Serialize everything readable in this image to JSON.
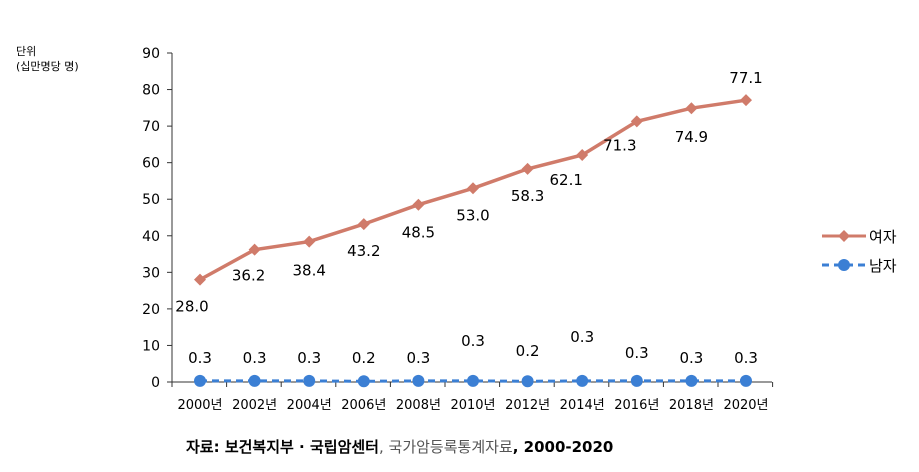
{
  "unit_label": {
    "line1": "단위",
    "line2": "(십만명당 명)"
  },
  "source": {
    "prefix": "자료: 보건복지부 · 국립암센터",
    "sep": ", ",
    "title": "국가암등록통계자료",
    "years": ", 2000-2020"
  },
  "chart_data": {
    "type": "line",
    "categories": [
      "2000년",
      "2002년",
      "2004년",
      "2006년",
      "2008년",
      "2010년",
      "2012년",
      "2014년",
      "2016년",
      "2018년",
      "2020년"
    ],
    "ylim": [
      0,
      90
    ],
    "yticks": [
      "0",
      "10",
      "20",
      "30",
      "40",
      "50",
      "60",
      "70",
      "80",
      "90"
    ],
    "grid": false,
    "legend_position": "right",
    "series": [
      {
        "name": "여자",
        "color": "#d07b6a",
        "marker": "diamond",
        "line": "solid",
        "values": [
          28.0,
          36.2,
          38.4,
          43.2,
          48.5,
          53.0,
          58.3,
          62.1,
          71.3,
          74.9,
          77.1
        ],
        "labels": [
          "28.0",
          "36.2",
          "38.4",
          "43.2",
          "48.5",
          "53.0",
          "58.3",
          "62.1",
          "71.3",
          "74.9",
          "77.1"
        ]
      },
      {
        "name": "남자",
        "color": "#3b7fd4",
        "marker": "circle",
        "line": "dashed",
        "values": [
          0.3,
          0.3,
          0.3,
          0.2,
          0.3,
          0.3,
          0.2,
          0.3,
          0.3,
          0.3,
          0.3
        ],
        "labels": [
          "0.3",
          "0.3",
          "0.3",
          "0.2",
          "0.3",
          "0.3",
          "0.2",
          "0.3",
          "0.3",
          "0.3",
          "0.3"
        ]
      }
    ]
  }
}
